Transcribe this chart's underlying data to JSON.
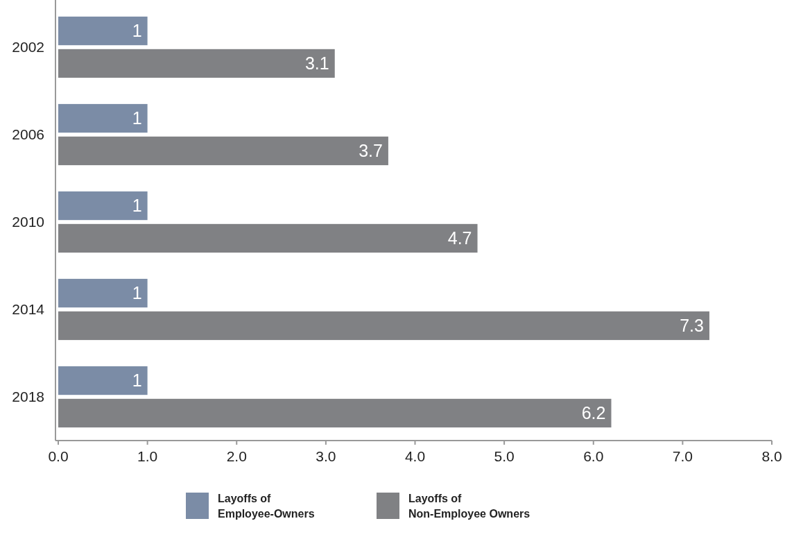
{
  "chart_data": {
    "type": "bar",
    "orientation": "horizontal",
    "categories": [
      "2002",
      "2006",
      "2010",
      "2014",
      "2018"
    ],
    "series": [
      {
        "name": "Layoffs of Employee-Owners",
        "color": "#7b8ca6",
        "values": [
          1,
          1,
          1,
          1,
          1
        ]
      },
      {
        "name": "Layoffs of Non-Employee Owners",
        "color": "#808184",
        "values": [
          3.1,
          3.7,
          4.7,
          7.3,
          6.2
        ]
      }
    ],
    "xlim": [
      0,
      8
    ],
    "xticks": [
      {
        "value": 0,
        "label": "0.0"
      },
      {
        "value": 1,
        "label": "1.0"
      },
      {
        "value": 2,
        "label": "2.0"
      },
      {
        "value": 3,
        "label": "3.0"
      },
      {
        "value": 4,
        "label": "4.0"
      },
      {
        "value": 5,
        "label": "5.0"
      },
      {
        "value": 6,
        "label": "6.0"
      },
      {
        "value": 7,
        "label": "7.0"
      },
      {
        "value": 8,
        "label": "8.0"
      }
    ],
    "data_labels": true,
    "grid": false,
    "legend": "bottom"
  }
}
